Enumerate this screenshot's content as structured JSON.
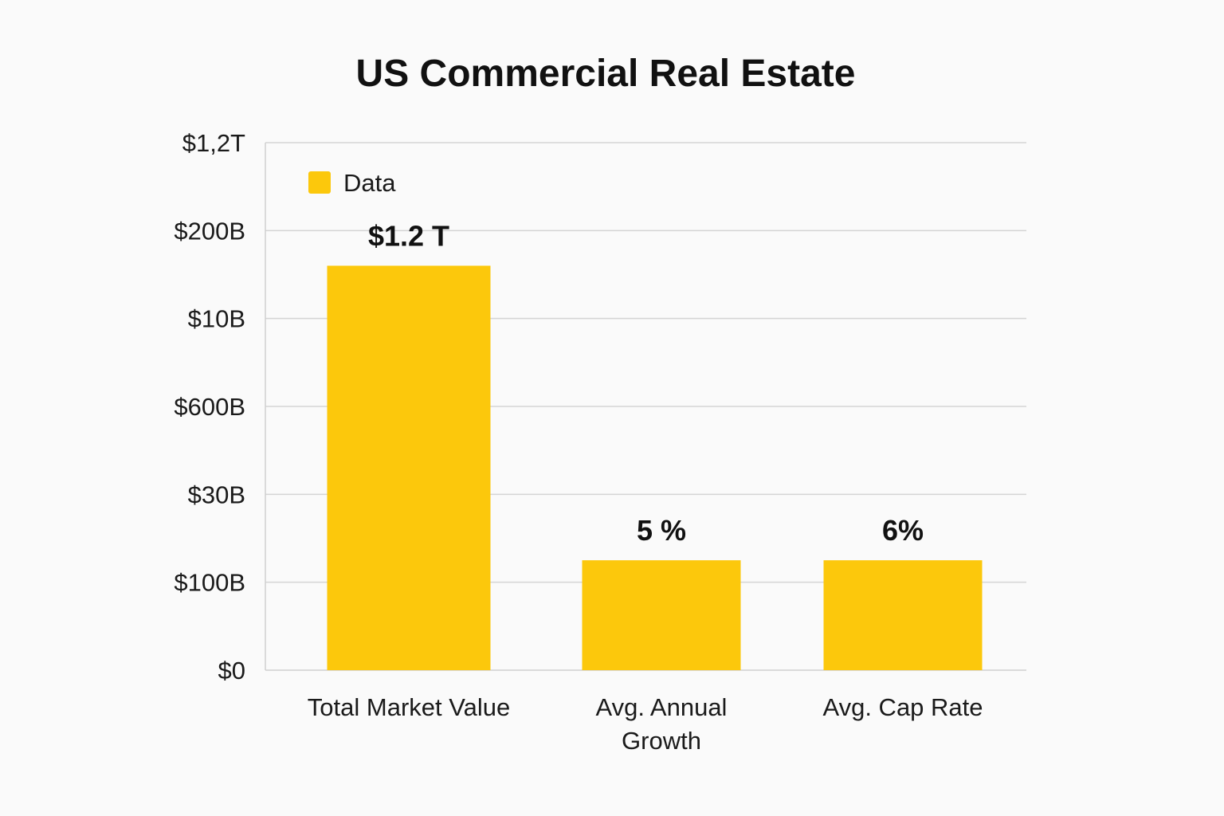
{
  "chart_data": {
    "type": "bar",
    "title": "US Commercial Real Estate",
    "xlabel": "",
    "ylabel": "",
    "grid": true,
    "legend": {
      "position": "top-left",
      "entries": [
        "Data"
      ]
    },
    "categories": [
      "Total Market Value",
      "Avg. Annual Growth",
      "Avg. Cap Rate"
    ],
    "series": [
      {
        "name": "Data",
        "values": [
          4.6,
          1.25,
          1.25
        ]
      }
    ],
    "data_labels": [
      "$1.2 T",
      "5 %",
      "6%"
    ],
    "y_ticks": [
      "$0",
      "$100B",
      "$30B",
      "$600B",
      "$10B",
      "$200B",
      "$1,2T"
    ],
    "ylim": [
      0,
      6
    ],
    "colors": {
      "bar": "#fcc80c",
      "legend_swatch": "#fcc80c",
      "text": "#111111",
      "grid": "#d4d4d4",
      "background": "#fafafa"
    }
  }
}
